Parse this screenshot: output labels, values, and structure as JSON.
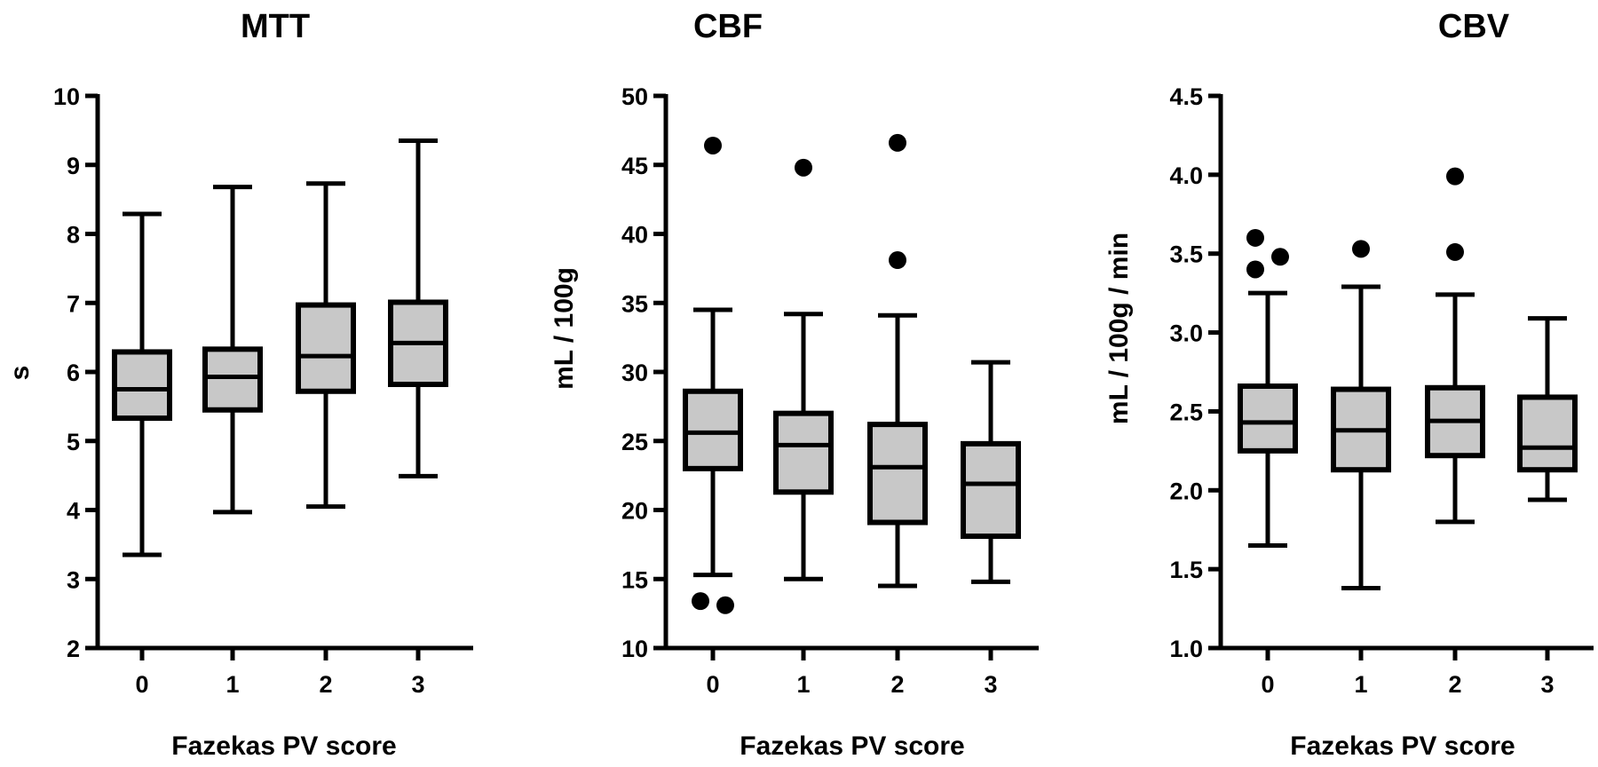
{
  "chart_data": [
    {
      "type": "box",
      "title": "MTT",
      "xlabel": "Fazekas PV score",
      "ylabel": "s",
      "ylim": [
        2,
        10
      ],
      "yticks": [
        "2",
        "3",
        "4",
        "5",
        "6",
        "7",
        "8",
        "9",
        "10"
      ],
      "yticks_values": [
        2,
        3,
        4,
        5,
        6,
        7,
        8,
        9,
        10
      ],
      "categories": [
        "0",
        "1",
        "2",
        "3"
      ],
      "boxes": [
        {
          "whisker_low": 3.35,
          "q1": 5.33,
          "median": 5.75,
          "q3": 6.29,
          "whisker_high": 8.29,
          "outliers": []
        },
        {
          "whisker_low": 3.97,
          "q1": 5.45,
          "median": 5.93,
          "q3": 6.33,
          "whisker_high": 8.68,
          "outliers": []
        },
        {
          "whisker_low": 4.05,
          "q1": 5.72,
          "median": 6.23,
          "q3": 6.97,
          "whisker_high": 8.73,
          "outliers": []
        },
        {
          "whisker_low": 4.49,
          "q1": 5.82,
          "median": 6.42,
          "q3": 7.01,
          "whisker_high": 9.35,
          "outliers": []
        }
      ]
    },
    {
      "type": "box",
      "title": "CBF",
      "xlabel": "Fazekas PV score",
      "ylabel": "mL / 100g",
      "ylim": [
        10,
        50
      ],
      "yticks": [
        "10",
        "15",
        "20",
        "25",
        "30",
        "35",
        "40",
        "45",
        "50"
      ],
      "yticks_values": [
        10,
        15,
        20,
        25,
        30,
        35,
        40,
        45,
        50
      ],
      "categories": [
        "0",
        "1",
        "2",
        "3"
      ],
      "boxes": [
        {
          "whisker_low": 15.3,
          "q1": 23.0,
          "median": 25.6,
          "q3": 28.6,
          "whisker_high": 34.5,
          "outliers": [
            46.4,
            13.1,
            13.4
          ]
        },
        {
          "whisker_low": 15.0,
          "q1": 21.3,
          "median": 24.7,
          "q3": 27.0,
          "whisker_high": 34.2,
          "outliers": [
            44.8
          ]
        },
        {
          "whisker_low": 14.5,
          "q1": 19.1,
          "median": 23.1,
          "q3": 26.2,
          "whisker_high": 34.1,
          "outliers": [
            46.6,
            38.1
          ]
        },
        {
          "whisker_low": 14.8,
          "q1": 18.1,
          "median": 21.9,
          "q3": 24.8,
          "whisker_high": 30.7,
          "outliers": []
        }
      ]
    },
    {
      "type": "box",
      "title": "CBV",
      "xlabel": "Fazekas PV score",
      "ylabel": "mL / 100g / min",
      "ylim": [
        1.0,
        4.5
      ],
      "yticks": [
        "1.0",
        "1.5",
        "2.0",
        "2.5",
        "3.0",
        "3.5",
        "4.0",
        "4.5"
      ],
      "yticks_values": [
        1.0,
        1.5,
        2.0,
        2.5,
        3.0,
        3.5,
        4.0,
        4.5
      ],
      "categories": [
        "0",
        "1",
        "2",
        "3"
      ],
      "boxes": [
        {
          "whisker_low": 1.65,
          "q1": 2.25,
          "median": 2.43,
          "q3": 2.66,
          "whisker_high": 3.25,
          "outliers": [
            3.6,
            3.48,
            3.4
          ]
        },
        {
          "whisker_low": 1.38,
          "q1": 2.13,
          "median": 2.38,
          "q3": 2.64,
          "whisker_high": 3.29,
          "outliers": [
            3.53
          ]
        },
        {
          "whisker_low": 1.8,
          "q1": 2.22,
          "median": 2.44,
          "q3": 2.65,
          "whisker_high": 3.24,
          "outliers": [
            3.99,
            3.51
          ]
        },
        {
          "whisker_low": 1.94,
          "q1": 2.13,
          "median": 2.27,
          "q3": 2.59,
          "whisker_high": 3.09,
          "outliers": []
        }
      ]
    }
  ],
  "colors": {
    "box_fill": "#c8c8c8",
    "stroke": "#000000",
    "background": "#ffffff"
  }
}
